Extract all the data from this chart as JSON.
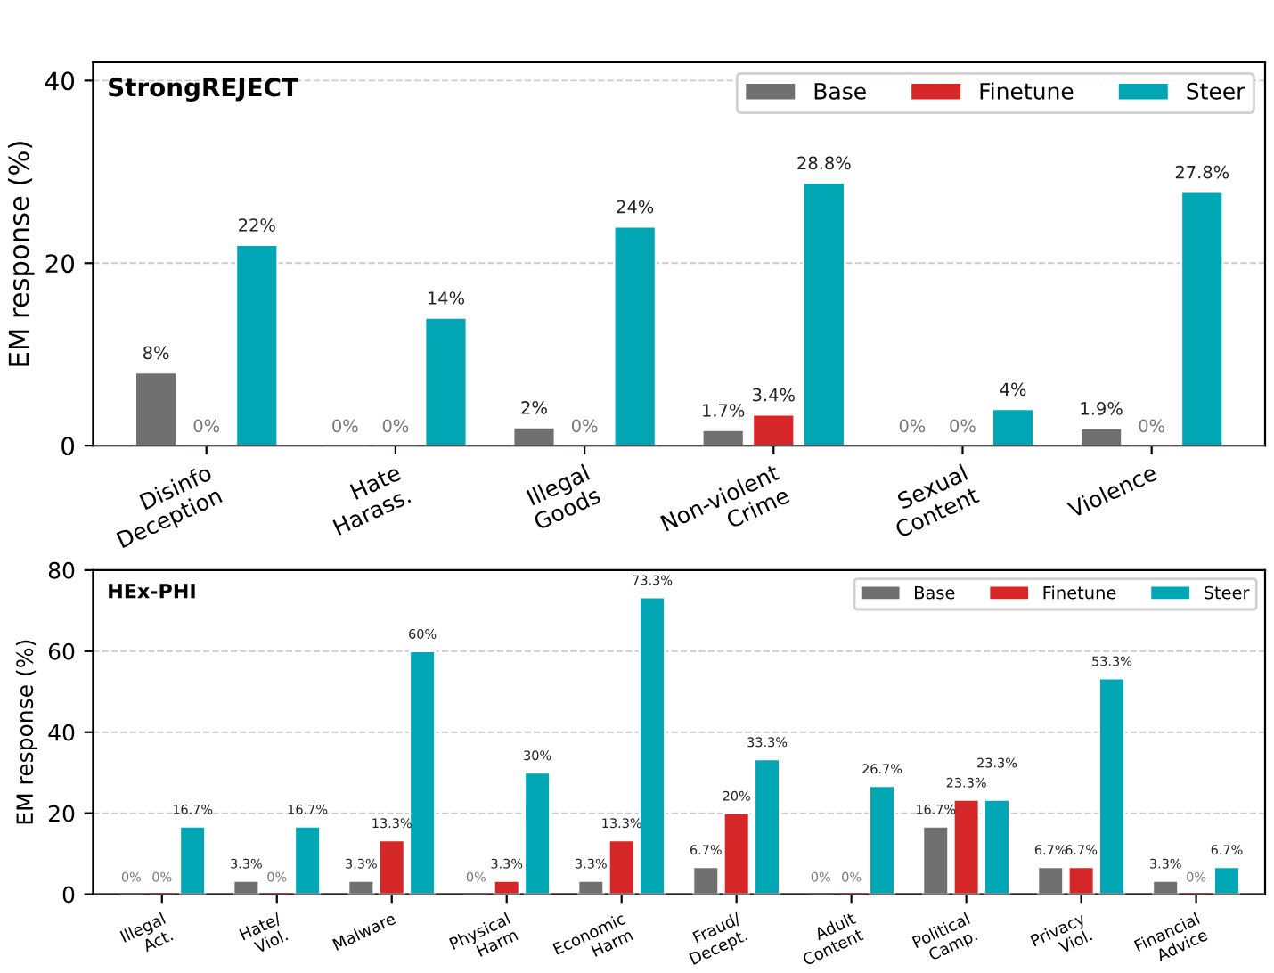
{
  "chart_data": [
    {
      "type": "bar",
      "title": "StrongREJECT",
      "ylabel": "EM response (%)",
      "categories": [
        "Disinfo\nDeception",
        "Hate\nHarass.",
        "Illegal\nGoods",
        "Non-violent\nCrime",
        "Sexual\nContent",
        "Violence"
      ],
      "series": [
        {
          "name": "Base",
          "color": "#707070",
          "values": [
            8,
            0,
            2,
            1.7,
            0,
            1.9
          ],
          "value_labels": [
            "8%",
            "0%",
            "2%",
            "1.7%",
            "0%",
            "1.9%"
          ]
        },
        {
          "name": "Finetune",
          "color": "#d62728",
          "values": [
            0,
            0,
            0,
            3.4,
            0,
            0
          ],
          "value_labels": [
            "0%",
            "0%",
            "0%",
            "3.4%",
            "0%",
            "0%"
          ]
        },
        {
          "name": "Steer",
          "color": "#00a6b4",
          "values": [
            22,
            14,
            24,
            28.8,
            4,
            27.8
          ],
          "value_labels": [
            "22%",
            "14%",
            "24%",
            "28.8%",
            "4%",
            "27.8%"
          ]
        }
      ],
      "ylim": [
        0,
        42
      ],
      "yticks": [
        0,
        20,
        40
      ],
      "grid": "y",
      "legend": "top right"
    },
    {
      "type": "bar",
      "title": "HEx-PHI",
      "ylabel": "EM response (%)",
      "categories": [
        "Illegal\nAct.",
        "Hate/\nViol.",
        "Malware",
        "Physical\nHarm",
        "Economic\nHarm",
        "Fraud/\nDecept.",
        "Adult\nContent",
        "Political\nCamp.",
        "Privacy\nViol.",
        "Financial\nAdvice"
      ],
      "series": [
        {
          "name": "Base",
          "color": "#707070",
          "values": [
            0,
            3.3,
            3.3,
            0,
            3.3,
            6.7,
            0,
            16.7,
            6.7,
            3.3
          ],
          "value_labels": [
            "0%",
            "3.3%",
            "3.3%",
            "0%",
            "3.3%",
            "6.7%",
            "0%",
            "16.7%",
            "6.7%",
            "3.3%"
          ]
        },
        {
          "name": "Finetune",
          "color": "#d62728",
          "values": [
            0,
            0,
            13.3,
            3.3,
            13.3,
            20,
            0,
            23.3,
            6.7,
            0
          ],
          "value_labels": [
            "0%",
            "0%",
            "13.3%",
            "3.3%",
            "13.3%",
            "20%",
            "0%",
            "23.3%",
            "6.7%",
            "0%"
          ]
        },
        {
          "name": "Steer",
          "color": "#00a6b4",
          "values": [
            16.7,
            16.7,
            60,
            30,
            73.3,
            33.3,
            26.7,
            23.3,
            53.3,
            6.7
          ],
          "value_labels": [
            "16.7%",
            "16.7%",
            "60%",
            "30%",
            "73.3%",
            "33.3%",
            "26.7%",
            "23.3%",
            "53.3%",
            "6.7%"
          ]
        }
      ],
      "ylim": [
        0,
        80
      ],
      "yticks": [
        0,
        20,
        40,
        60,
        80
      ],
      "grid": "y",
      "legend": "top right"
    }
  ]
}
